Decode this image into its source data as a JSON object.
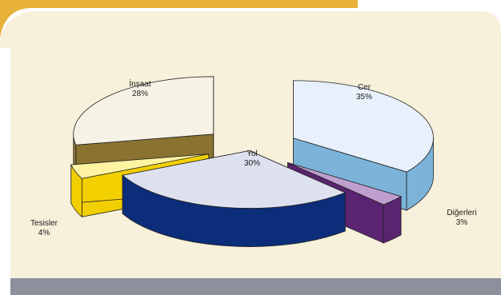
{
  "chart_data": {
    "type": "pie",
    "style": "3d-exploded",
    "title": "",
    "slices": [
      {
        "label": "Cer",
        "value": 35,
        "value_label": "35%",
        "color": "#e8f1fb",
        "side_color": "#7bb3d9"
      },
      {
        "label": "Diğerleri",
        "value": 3,
        "value_label": "3%",
        "color": "#bf9fcf",
        "side_color": "#5a2470"
      },
      {
        "label": "Yol",
        "value": 30,
        "value_label": "30%",
        "color": "#dde0ee",
        "side_color": "#0c2d7a"
      },
      {
        "label": "Tesisler",
        "value": 4,
        "value_label": "4%",
        "color": "#fdf3a0",
        "side_color": "#f2cf00"
      },
      {
        "label": "İnşaat",
        "value": 28,
        "value_label": "28%",
        "color": "#f6f2e6",
        "side_color": "#8a7330"
      }
    ],
    "background_color": "#f7f0da",
    "accent_color": "#e8b23a",
    "band_color": "#8c8f9c",
    "legend": "none"
  }
}
